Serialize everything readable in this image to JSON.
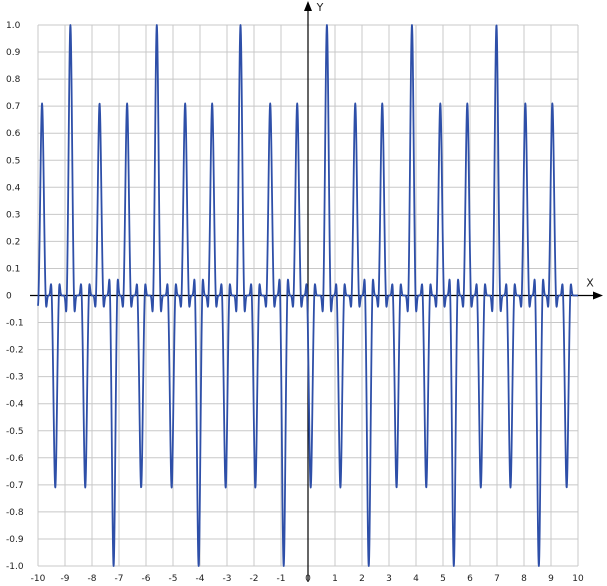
{
  "chart_data": {
    "type": "line",
    "title": "",
    "xlabel": "X",
    "ylabel": "Y",
    "xlim": [
      -10,
      10
    ],
    "ylim": [
      -1,
      1
    ],
    "x_ticks": [
      -10,
      -9,
      -8,
      -7,
      -6,
      -5,
      -4,
      -3,
      -2,
      -1,
      0,
      1,
      2,
      3,
      4,
      5,
      6,
      7,
      8,
      9,
      10
    ],
    "y_ticks": [
      -1,
      -0.9,
      -0.8,
      -0.7,
      -0.6,
      -0.5,
      -0.4,
      -0.3,
      -0.2,
      -0.1,
      0,
      0.1,
      0.2,
      0.3,
      0.4,
      0.5,
      0.6,
      0.7,
      0.8,
      0.9,
      1
    ],
    "x_tick_labels": [
      "-10",
      "-9",
      "-8",
      "-7",
      "-6",
      "-5",
      "-4",
      "-3",
      "-2",
      "-1",
      "0",
      "1",
      "2",
      "3",
      "4",
      "5",
      "6",
      "7",
      "8",
      "9",
      "10"
    ],
    "y_tick_labels": [
      "-1.0",
      "-0.9",
      "-0.8",
      "-0.7",
      "-0.6",
      "-0.5",
      "-0.4",
      "-0.3",
      "-0.2",
      "-0.1",
      "0",
      "0.1",
      "0.2",
      "0.3",
      "0.4",
      "0.5",
      "0.6",
      "0.7",
      "0.8",
      "0.9",
      "1.0"
    ],
    "grid": true,
    "colors": {
      "series": "#2e4fa8",
      "grid": "#c8c8c8",
      "axis": "#000000",
      "background": "#ffffff"
    },
    "series": [
      {
        "peaks": [
          {
            "x": -9.85,
            "y": 0.71
          },
          {
            "x": -9.36,
            "y": -0.71
          },
          {
            "x": -8.8,
            "y": 1.0
          },
          {
            "x": -8.25,
            "y": -0.71
          },
          {
            "x": -7.72,
            "y": 0.71
          },
          {
            "x": -7.2,
            "y": -1.0
          },
          {
            "x": -6.7,
            "y": 0.71
          },
          {
            "x": -6.18,
            "y": -0.71
          },
          {
            "x": -5.6,
            "y": 1.0
          },
          {
            "x": -5.05,
            "y": -0.71
          },
          {
            "x": -4.55,
            "y": 0.71
          },
          {
            "x": -4.05,
            "y": -1.0
          },
          {
            "x": -3.55,
            "y": 0.71
          },
          {
            "x": -3.05,
            "y": -0.71
          },
          {
            "x": -2.5,
            "y": 1.0
          },
          {
            "x": -1.95,
            "y": -0.71
          },
          {
            "x": -1.4,
            "y": 0.71
          },
          {
            "x": -0.9,
            "y": -1.0
          },
          {
            "x": -0.4,
            "y": 0.71
          },
          {
            "x": 0.1,
            "y": -0.71
          },
          {
            "x": 0.7,
            "y": 1.0
          },
          {
            "x": 1.2,
            "y": -0.71
          },
          {
            "x": 1.75,
            "y": 0.71
          },
          {
            "x": 2.25,
            "y": -1.0
          },
          {
            "x": 2.75,
            "y": 0.71
          },
          {
            "x": 3.28,
            "y": -0.71
          },
          {
            "x": 3.85,
            "y": 1.0
          },
          {
            "x": 4.38,
            "y": -0.71
          },
          {
            "x": 4.9,
            "y": 0.71
          },
          {
            "x": 5.4,
            "y": -1.0
          },
          {
            "x": 5.9,
            "y": 0.71
          },
          {
            "x": 6.4,
            "y": -0.71
          },
          {
            "x": 6.98,
            "y": 1.0
          },
          {
            "x": 7.5,
            "y": -0.71
          },
          {
            "x": 8.05,
            "y": 0.71
          },
          {
            "x": 8.55,
            "y": -1.0
          },
          {
            "x": 9.05,
            "y": 0.71
          },
          {
            "x": 9.58,
            "y": -0.71
          }
        ]
      }
    ]
  }
}
